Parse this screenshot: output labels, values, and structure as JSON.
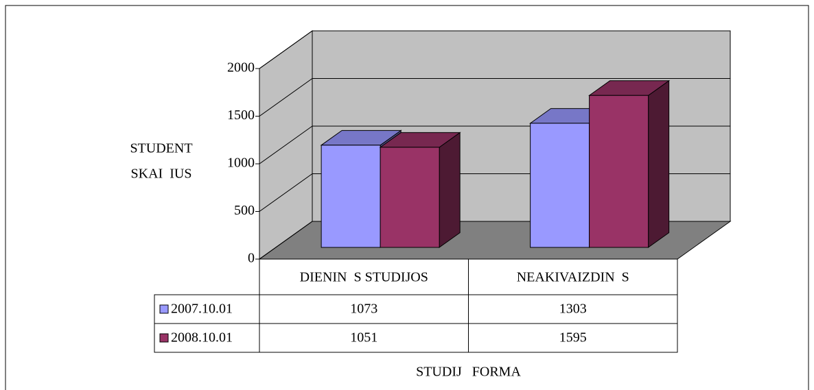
{
  "chart_data": {
    "type": "bar3d",
    "y_label": [
      "STUDENT",
      "SKAI  IUS"
    ],
    "x_label": "STUDIJ   FORMA",
    "categories": [
      "DIENIN  S STUDIJOS",
      "NEAKIVAIZDIN  S"
    ],
    "series": [
      {
        "name": "2007.10.01",
        "color": "#9999ff",
        "values": [
          1073,
          1303
        ]
      },
      {
        "name": "2008.10.01",
        "color": "#993366",
        "values": [
          1051,
          1595
        ]
      }
    ],
    "ylim": [
      0,
      2000
    ],
    "yticks": [
      0,
      500,
      1000,
      1500,
      2000
    ],
    "grid": true
  }
}
